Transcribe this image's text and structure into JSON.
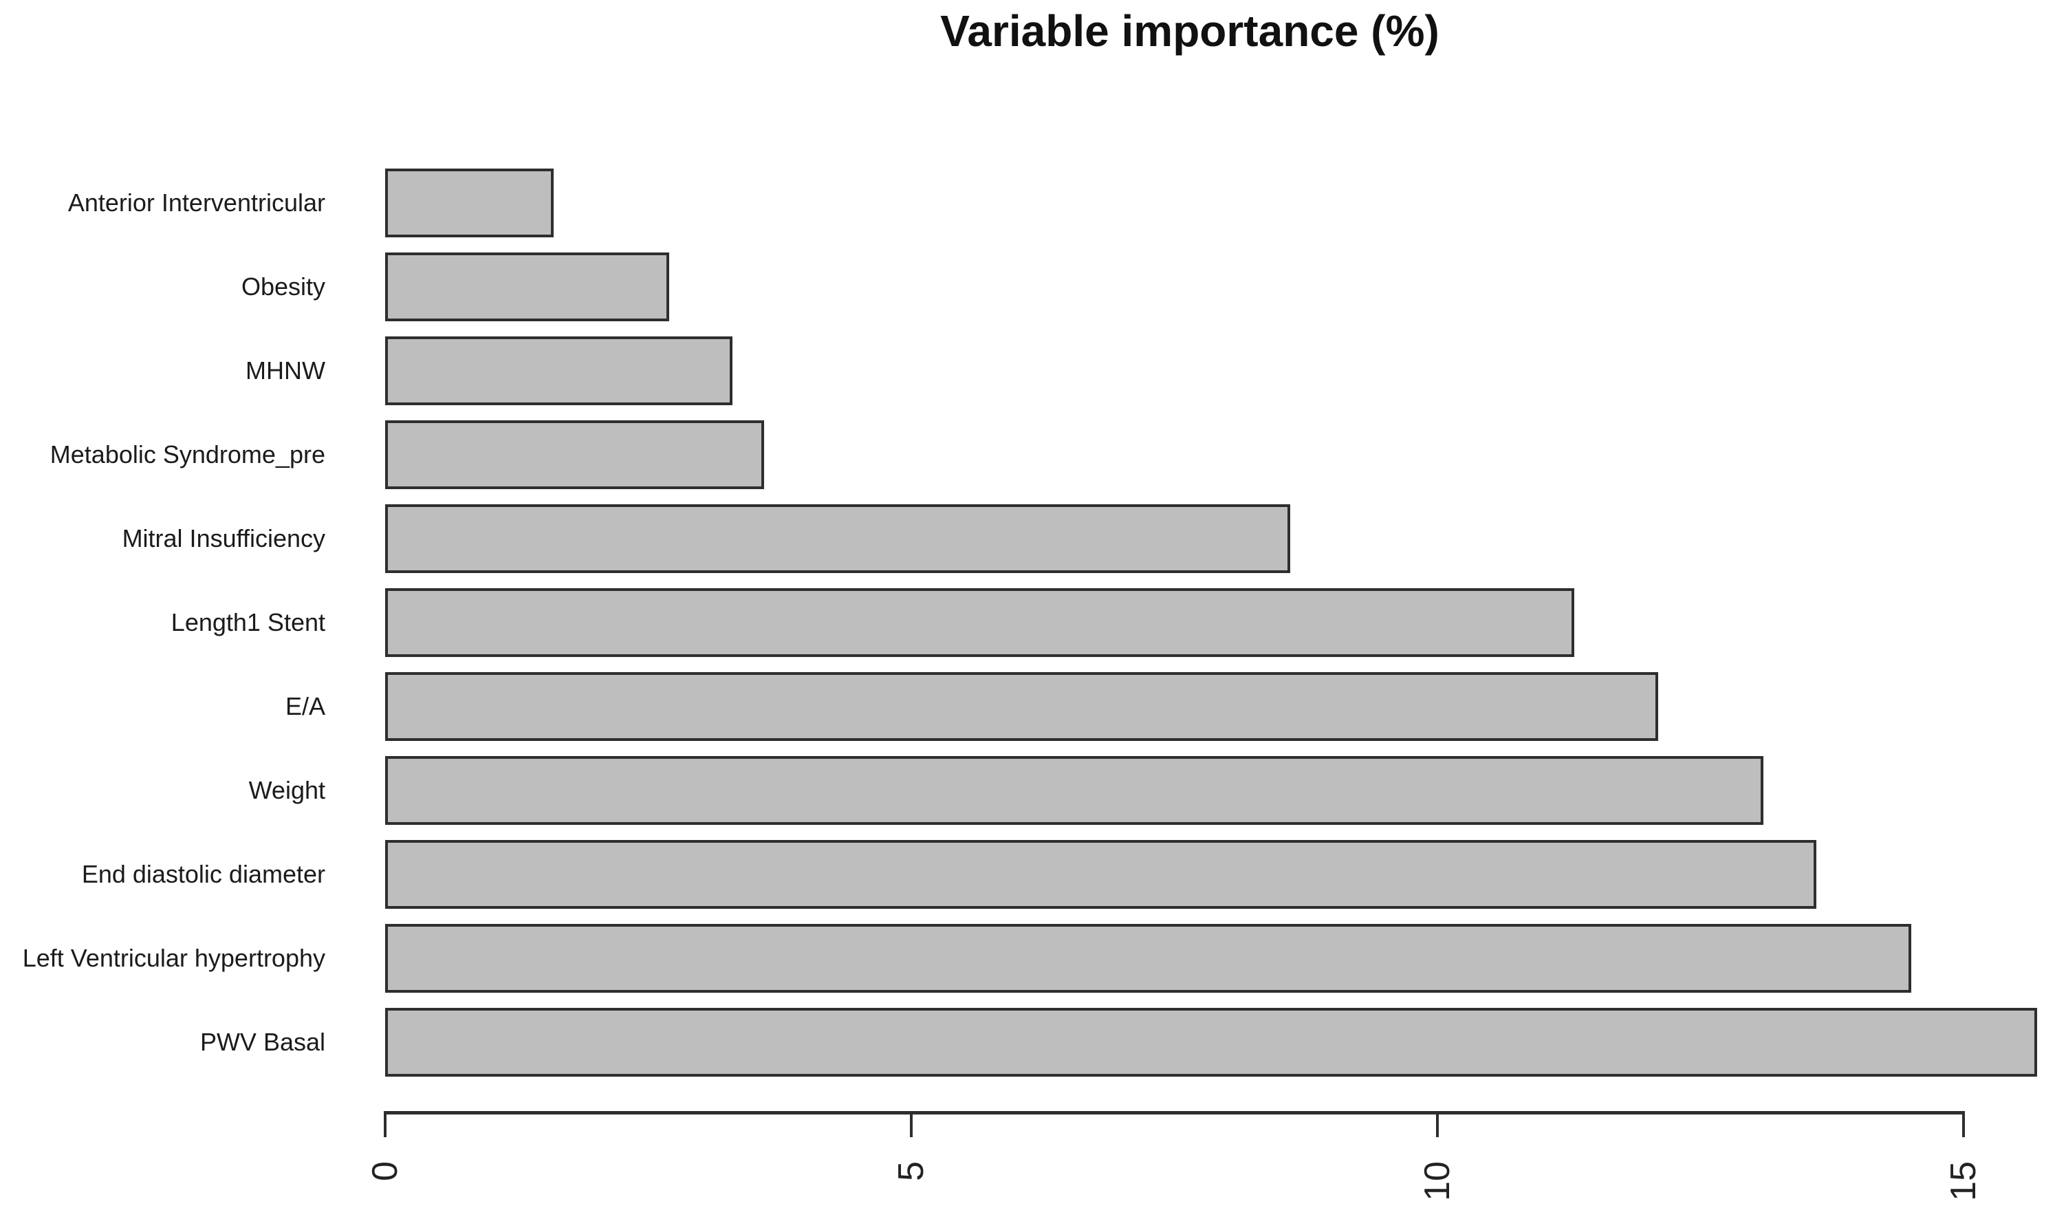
{
  "chart_data": {
    "type": "bar",
    "orientation": "horizontal",
    "title": "Variable importance (%)",
    "categories": [
      "Anterior Interventricular",
      "Obesity",
      "MHNW",
      "Metabolic Syndrome_pre",
      "Mitral Insufficiency",
      "Length1 Stent",
      "E/A",
      "Weight",
      "End diastolic diameter",
      "Left Ventricular hypertrophy",
      "PWV Basal"
    ],
    "values": [
      1.6,
      2.7,
      3.3,
      3.6,
      8.6,
      11.3,
      12.1,
      13.1,
      13.6,
      14.5,
      15.7
    ],
    "x_ticks": [
      0,
      5,
      10,
      15
    ],
    "xlim": [
      0,
      15.8
    ],
    "xlabel": "",
    "ylabel": "",
    "grid": false,
    "legend": null,
    "colors": {
      "bar_fill": "#bebebe",
      "bar_border": "#2e2e2e",
      "axis": "#2e2e2e",
      "text": "#1b1b1b",
      "background": "#ffffff"
    }
  }
}
